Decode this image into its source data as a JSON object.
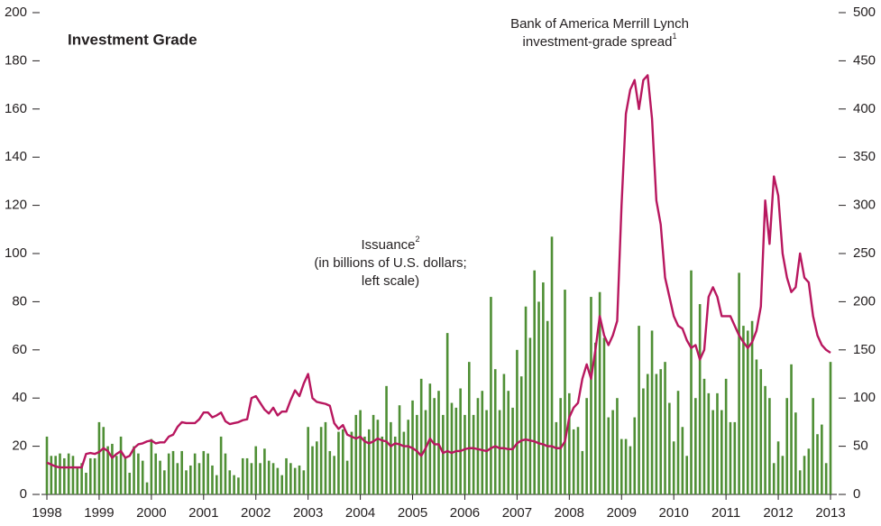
{
  "chart_data": {
    "type": "bar_line",
    "title": "Investment Grade",
    "annotations": [
      {
        "lines": [
          "Bank of America Merrill Lynch",
          "investment-grade spread"
        ],
        "sup": "1"
      },
      {
        "lines": [
          "Issuance",
          "(in billions of U.S. dollars;",
          "left scale)"
        ],
        "sup": "2"
      }
    ],
    "categories": [
      "1998",
      null,
      null,
      null,
      null,
      null,
      null,
      null,
      null,
      null,
      null,
      null,
      "1999",
      null,
      null,
      null,
      null,
      null,
      null,
      null,
      null,
      null,
      null,
      null,
      "2000",
      null,
      null,
      null,
      null,
      null,
      null,
      null,
      null,
      null,
      null,
      null,
      "2001",
      null,
      null,
      null,
      null,
      null,
      null,
      null,
      null,
      null,
      null,
      null,
      "2002",
      null,
      null,
      null,
      null,
      null,
      null,
      null,
      null,
      null,
      null,
      null,
      "2003",
      null,
      null,
      null,
      null,
      null,
      null,
      null,
      null,
      null,
      null,
      null,
      "2004",
      null,
      null,
      null,
      null,
      null,
      null,
      null,
      null,
      null,
      null,
      null,
      "2005",
      null,
      null,
      null,
      null,
      null,
      null,
      null,
      null,
      null,
      null,
      null,
      "2006",
      null,
      null,
      null,
      null,
      null,
      null,
      null,
      null,
      null,
      null,
      null,
      "2007",
      null,
      null,
      null,
      null,
      null,
      null,
      null,
      null,
      null,
      null,
      null,
      "2008",
      null,
      null,
      null,
      null,
      null,
      null,
      null,
      null,
      null,
      null,
      null,
      "2009",
      null,
      null,
      null,
      null,
      null,
      null,
      null,
      null,
      null,
      null,
      null,
      "2010",
      null,
      null,
      null,
      null,
      null,
      null,
      null,
      null,
      null,
      null,
      null,
      "2011",
      null,
      null,
      null,
      null,
      null,
      null,
      null,
      null,
      null,
      null,
      null,
      "2012",
      null,
      null,
      null,
      null,
      null,
      null,
      null,
      null,
      null,
      null,
      null,
      "2013"
    ],
    "series": [
      {
        "name": "Issuance",
        "type": "bar",
        "color": "#4f8f35",
        "values": [
          24,
          16,
          16,
          17,
          15,
          17,
          16,
          11,
          13,
          9,
          15,
          15,
          30,
          28,
          20,
          21,
          16,
          24,
          15,
          9,
          20,
          17,
          14,
          5,
          23,
          17,
          14,
          10,
          17,
          18,
          13,
          18,
          10,
          12,
          17,
          13,
          18,
          17,
          12,
          8,
          24,
          17,
          10,
          8,
          7,
          15,
          15,
          13,
          20,
          13,
          19,
          14,
          13,
          11,
          8,
          15,
          13,
          11,
          12,
          10,
          28,
          20,
          22,
          28,
          30,
          18,
          16,
          26,
          27,
          14,
          26,
          33,
          35,
          24,
          27,
          33,
          31,
          24,
          45,
          30,
          24,
          37,
          26,
          31,
          39,
          33,
          48,
          35,
          46,
          40,
          43,
          33,
          67,
          38,
          36,
          44,
          33,
          55,
          33,
          40,
          43,
          35,
          82,
          52,
          35,
          50,
          43,
          36,
          60,
          49,
          78,
          65,
          93,
          80,
          88,
          72,
          107,
          30,
          40,
          85,
          42,
          27,
          28,
          18,
          40,
          82,
          63,
          84,
          65,
          32,
          35,
          40,
          23,
          23,
          20,
          32,
          70,
          44,
          50,
          68,
          50,
          52,
          55,
          38,
          22,
          43,
          28,
          16,
          93,
          40,
          79,
          48,
          42,
          35,
          42,
          35,
          48,
          30,
          30,
          92,
          70,
          68,
          72,
          56,
          52,
          45,
          40,
          13,
          22,
          16,
          40,
          54,
          34,
          10,
          16,
          19,
          40,
          25,
          29,
          13,
          55
        ]
      },
      {
        "name": "Bank of America Merrill Lynch investment-grade spread",
        "type": "line",
        "axis": "y2",
        "color": "#b8175f",
        "values": [
          33,
          31,
          29,
          28,
          28,
          28,
          28,
          28,
          28,
          42,
          43,
          42,
          44,
          48,
          45,
          38,
          42,
          45,
          38,
          40,
          48,
          52,
          53,
          55,
          56,
          53,
          54,
          54,
          60,
          62,
          70,
          75,
          74,
          74,
          74,
          78,
          85,
          85,
          80,
          82,
          85,
          76,
          73,
          74,
          75,
          77,
          78,
          100,
          102,
          95,
          88,
          84,
          90,
          82,
          86,
          86,
          98,
          108,
          102,
          115,
          125,
          100,
          96,
          95,
          94,
          92,
          74,
          68,
          72,
          62,
          60,
          58,
          60,
          55,
          53,
          55,
          58,
          56,
          55,
          50,
          53,
          52,
          50,
          50,
          48,
          45,
          40,
          48,
          58,
          52,
          52,
          43,
          45,
          43,
          45,
          45,
          47,
          48,
          48,
          47,
          46,
          45,
          48,
          50,
          48,
          48,
          47,
          47,
          53,
          56,
          57,
          56,
          55,
          53,
          52,
          50,
          50,
          48,
          48,
          55,
          80,
          90,
          95,
          120,
          135,
          120,
          150,
          185,
          165,
          155,
          165,
          180,
          300,
          395,
          420,
          430,
          400,
          430,
          435,
          390,
          305,
          280,
          225,
          205,
          185,
          175,
          172,
          160,
          152,
          155,
          140,
          150,
          205,
          215,
          205,
          185,
          185,
          185,
          175,
          165,
          158,
          152,
          158,
          170,
          195,
          305,
          260,
          330,
          310,
          250,
          225,
          210,
          215,
          250,
          225,
          220,
          185,
          165,
          155,
          150,
          147
        ]
      }
    ],
    "ylim": [
      0,
      200
    ],
    "yticks": [
      0,
      20,
      40,
      60,
      80,
      100,
      120,
      140,
      160,
      180,
      200
    ],
    "y2lim": [
      0,
      500
    ],
    "y2ticks": [
      0,
      50,
      100,
      150,
      200,
      250,
      300,
      350,
      400,
      450,
      500
    ]
  }
}
